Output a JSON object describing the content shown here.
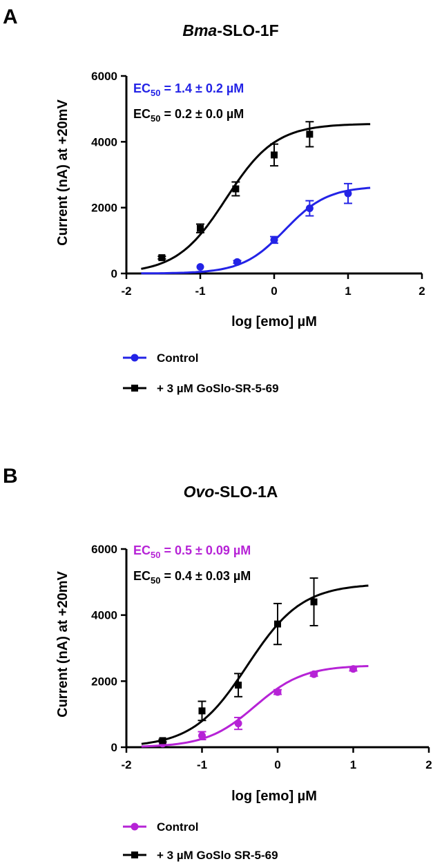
{
  "chart_data": [
    {
      "type": "scatter",
      "panel_letter": "A",
      "title_italic": "Bma",
      "title_rest": "-SLO-1F",
      "xlabel": "log [emo] µM",
      "ylabel": "Current (nA) at +20mV",
      "xlim": [
        -2,
        2
      ],
      "ylim": [
        0,
        6000
      ],
      "xticks": [
        "-2",
        "-1",
        "0",
        "1",
        "2"
      ],
      "yticks": [
        "0",
        "2000",
        "4000",
        "6000"
      ],
      "annotations": [
        {
          "prefix": "EC",
          "sub": "50",
          "suffix": " = 1.4 ± 0.2 µM",
          "color": "#2323e6"
        },
        {
          "prefix": "EC",
          "sub": "50",
          "suffix": " = 0.2 ± 0.0 µM",
          "color": "#000000"
        }
      ],
      "series": [
        {
          "name": "Control",
          "color": "#2323e6",
          "marker": "circle",
          "x": [
            -1.0,
            -0.5,
            0.0,
            0.48,
            1.0
          ],
          "y": [
            200,
            350,
            1020,
            1980,
            2430
          ],
          "err": [
            30,
            40,
            100,
            230,
            300
          ],
          "fit": {
            "bottom": 0,
            "top": 2650,
            "ec50_log": 0.146,
            "hill": 1.5,
            "x_range": [
              -1.8,
              1.3
            ]
          }
        },
        {
          "name": "+ 3 µM GoSlo-SR-5-69",
          "color": "#000000",
          "marker": "square",
          "x": [
            -1.52,
            -1.0,
            -0.52,
            0.0,
            0.48
          ],
          "y": [
            480,
            1370,
            2570,
            3600,
            4230
          ],
          "err": [
            40,
            130,
            210,
            330,
            380
          ],
          "fit": {
            "bottom": 0,
            "top": 4550,
            "ec50_log": -0.65,
            "hill": 1.3,
            "x_range": [
              -1.8,
              1.3
            ]
          }
        }
      ]
    },
    {
      "type": "scatter",
      "panel_letter": "B",
      "title_italic": "Ovo",
      "title_rest": "-SLO-1A",
      "xlabel": "log [emo] µM",
      "ylabel": "Current (nA) at +20mV",
      "xlim": [
        -2,
        2
      ],
      "ylim": [
        0,
        6000
      ],
      "xticks": [
        "-2",
        "-1",
        "0",
        "1",
        "2"
      ],
      "yticks": [
        "0",
        "2000",
        "4000",
        "6000"
      ],
      "annotations": [
        {
          "prefix": "EC",
          "sub": "50",
          "suffix": " = 0.5 ± 0.09 µM",
          "color": "#b623d6"
        },
        {
          "prefix": "EC",
          "sub": "50",
          "suffix": " = 0.4 ± 0.03 µM",
          "color": "#000000"
        }
      ],
      "series": [
        {
          "name": "Control",
          "color": "#b623d6",
          "marker": "circle",
          "x": [
            -1.52,
            -1.0,
            -0.52,
            0.0,
            0.48,
            1.0
          ],
          "y": [
            110,
            350,
            720,
            1670,
            2210,
            2370
          ],
          "err": [
            30,
            120,
            180,
            70,
            60,
            60
          ],
          "fit": {
            "bottom": 0,
            "top": 2480,
            "ec50_log": -0.3,
            "hill": 1.35,
            "x_range": [
              -1.8,
              1.2
            ]
          }
        },
        {
          "name": "+ 3 µM GoSlo SR-5-69",
          "color": "#000000",
          "marker": "square",
          "x": [
            -1.52,
            -1.0,
            -0.52,
            0.0,
            0.48
          ],
          "y": [
            200,
            1100,
            1880,
            3730,
            4400
          ],
          "err": [
            40,
            290,
            350,
            620,
            720
          ],
          "fit": {
            "bottom": 0,
            "top": 4950,
            "ec50_log": -0.4,
            "hill": 1.2,
            "x_range": [
              -1.8,
              1.2
            ]
          }
        }
      ]
    }
  ]
}
